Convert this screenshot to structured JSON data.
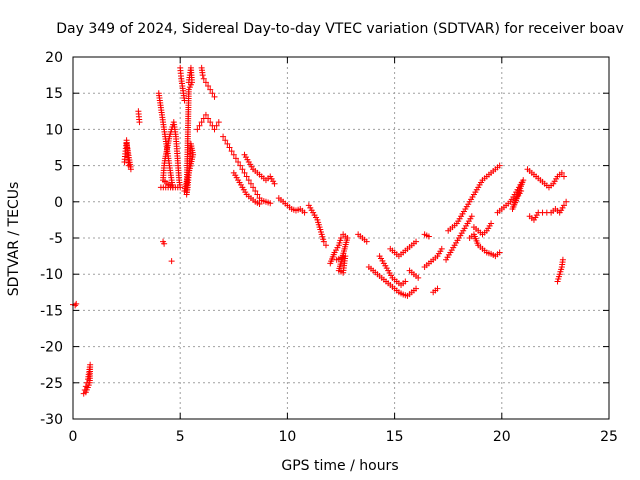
{
  "chart_data": {
    "type": "scatter",
    "title": "Day 349 of 2024, Sidereal Day-to-day VTEC variation (SDTVAR) for receiver boav",
    "xlabel": "GPS time / hours",
    "ylabel": "SDTVAR / TECUs",
    "xlim": [
      0,
      25
    ],
    "ylim": [
      -30,
      20
    ],
    "xticks": [
      0,
      5,
      10,
      15,
      20,
      25
    ],
    "yticks": [
      -30,
      -25,
      -20,
      -15,
      -10,
      -5,
      0,
      5,
      10,
      15,
      20
    ],
    "grid": true,
    "marker": "+",
    "color": "#ff0000",
    "series": [
      {
        "name": "boav",
        "segments": [
          [
            [
              0.0,
              -14.2
            ],
            [
              0.1,
              -14.3
            ],
            [
              0.15,
              -14.1
            ]
          ],
          [
            [
              0.5,
              -26.5
            ],
            [
              0.55,
              -26.0
            ],
            [
              0.6,
              -25.5
            ],
            [
              0.65,
              -25.0
            ],
            [
              0.7,
              -24.5
            ],
            [
              0.75,
              -23.5
            ],
            [
              0.8,
              -22.5
            ],
            [
              0.78,
              -25.0
            ],
            [
              0.6,
              -26.3
            ]
          ],
          [
            [
              2.4,
              5.5
            ],
            [
              2.45,
              7.0
            ],
            [
              2.5,
              8.5
            ],
            [
              2.55,
              6.5
            ],
            [
              2.6,
              5.0
            ],
            [
              2.7,
              4.5
            ],
            [
              2.5,
              8.0
            ]
          ],
          [
            [
              3.05,
              12.5
            ],
            [
              3.1,
              11.0
            ]
          ],
          [
            [
              4.0,
              15.0
            ],
            [
              4.05,
              14.0
            ],
            [
              4.1,
              13.0
            ],
            [
              4.15,
              12.0
            ],
            [
              4.2,
              11.0
            ],
            [
              4.25,
              10.0
            ],
            [
              4.3,
              9.0
            ],
            [
              4.35,
              8.0
            ],
            [
              4.4,
              7.0
            ],
            [
              4.45,
              6.0
            ],
            [
              4.5,
              5.0
            ],
            [
              4.55,
              4.0
            ],
            [
              4.6,
              3.0
            ],
            [
              4.65,
              2.0
            ],
            [
              4.2,
              3.0
            ],
            [
              4.25,
              5.0
            ],
            [
              4.3,
              6.0
            ],
            [
              4.5,
              9.0
            ],
            [
              4.6,
              10.0
            ],
            [
              4.7,
              11.0
            ],
            [
              4.8,
              9.0
            ],
            [
              4.85,
              7.0
            ],
            [
              4.9,
              5.0
            ],
            [
              4.95,
              3.0
            ],
            [
              5.0,
              2.0
            ],
            [
              4.1,
              2.0
            ]
          ],
          [
            [
              4.2,
              -5.5
            ],
            [
              4.25,
              -5.8
            ]
          ],
          [
            [
              4.6,
              -8.2
            ]
          ],
          [
            [
              5.0,
              18.5
            ],
            [
              5.05,
              17.0
            ],
            [
              5.1,
              16.0
            ],
            [
              5.15,
              15.0
            ],
            [
              5.2,
              14.0
            ]
          ],
          [
            [
              5.4,
              16.5
            ],
            [
              5.45,
              17.5
            ],
            [
              5.5,
              18.5
            ],
            [
              5.55,
              16.5
            ],
            [
              5.4,
              15.5
            ],
            [
              5.3,
              1.0
            ],
            [
              5.35,
              2.0
            ],
            [
              5.4,
              4.0
            ],
            [
              5.45,
              6.0
            ],
            [
              5.5,
              8.0
            ],
            [
              5.6,
              6.5
            ],
            [
              5.2,
              1.5
            ]
          ],
          [
            [
              6.0,
              18.5
            ],
            [
              6.05,
              17.5
            ],
            [
              6.1,
              17.0
            ],
            [
              6.2,
              16.5
            ],
            [
              6.3,
              16.0
            ],
            [
              6.4,
              15.5
            ],
            [
              6.5,
              15.0
            ],
            [
              6.6,
              14.5
            ]
          ],
          [
            [
              5.8,
              10.0
            ],
            [
              5.9,
              10.5
            ],
            [
              6.0,
              11.0
            ],
            [
              6.1,
              11.5
            ],
            [
              6.2,
              12.0
            ],
            [
              6.3,
              11.5
            ],
            [
              6.4,
              11.0
            ],
            [
              6.5,
              10.5
            ],
            [
              6.6,
              10.0
            ],
            [
              6.7,
              10.5
            ],
            [
              6.8,
              11.0
            ]
          ],
          [
            [
              7.0,
              9.0
            ],
            [
              7.1,
              8.5
            ],
            [
              7.2,
              8.0
            ],
            [
              7.3,
              7.5
            ],
            [
              7.4,
              7.0
            ],
            [
              7.5,
              6.5
            ],
            [
              7.6,
              6.0
            ],
            [
              7.7,
              5.5
            ],
            [
              7.8,
              5.0
            ],
            [
              7.9,
              4.5
            ],
            [
              8.0,
              4.0
            ],
            [
              8.1,
              3.5
            ],
            [
              8.2,
              3.0
            ],
            [
              8.3,
              2.5
            ],
            [
              8.4,
              2.0
            ],
            [
              8.5,
              1.5
            ],
            [
              8.6,
              1.0
            ],
            [
              8.7,
              0.5
            ],
            [
              8.8,
              0.2
            ],
            [
              9.0,
              0.0
            ],
            [
              9.2,
              -0.2
            ]
          ],
          [
            [
              7.5,
              4.0
            ],
            [
              7.7,
              3.0
            ],
            [
              7.9,
              2.0
            ],
            [
              8.1,
              1.0
            ],
            [
              8.3,
              0.5
            ],
            [
              8.5,
              0.0
            ],
            [
              8.7,
              -0.3
            ]
          ],
          [
            [
              8.0,
              6.5
            ],
            [
              8.2,
              5.5
            ],
            [
              8.4,
              4.5
            ],
            [
              8.6,
              4.0
            ],
            [
              8.8,
              3.5
            ],
            [
              9.0,
              3.0
            ],
            [
              9.2,
              3.5
            ],
            [
              9.4,
              2.5
            ]
          ],
          [
            [
              9.6,
              0.5
            ],
            [
              9.8,
              0.0
            ],
            [
              10.0,
              -0.5
            ],
            [
              10.2,
              -1.0
            ],
            [
              10.4,
              -1.2
            ],
            [
              10.6,
              -1.0
            ],
            [
              10.8,
              -1.5
            ]
          ],
          [
            [
              11.0,
              -0.5
            ],
            [
              11.2,
              -1.5
            ],
            [
              11.4,
              -2.5
            ],
            [
              11.5,
              -3.5
            ],
            [
              11.6,
              -4.5
            ],
            [
              11.7,
              -5.5
            ],
            [
              11.8,
              -6.0
            ]
          ],
          [
            [
              12.0,
              -8.5
            ],
            [
              12.2,
              -7.0
            ],
            [
              12.4,
              -6.0
            ],
            [
              12.5,
              -5.0
            ],
            [
              12.6,
              -4.5
            ],
            [
              12.8,
              -5.0
            ],
            [
              12.4,
              -9.5
            ],
            [
              12.6,
              -9.8
            ],
            [
              12.7,
              -7.5
            ],
            [
              12.3,
              -8.0
            ]
          ],
          [
            [
              13.3,
              -4.5
            ],
            [
              13.5,
              -5.0
            ],
            [
              13.7,
              -5.5
            ]
          ],
          [
            [
              13.8,
              -9.0
            ],
            [
              14.0,
              -9.5
            ],
            [
              14.2,
              -10.0
            ],
            [
              14.4,
              -10.5
            ],
            [
              14.6,
              -11.0
            ],
            [
              14.8,
              -11.5
            ],
            [
              15.0,
              -12.0
            ],
            [
              15.2,
              -12.5
            ],
            [
              15.4,
              -12.8
            ],
            [
              15.6,
              -13.0
            ],
            [
              15.8,
              -12.5
            ],
            [
              16.0,
              -12.0
            ]
          ],
          [
            [
              14.3,
              -7.5
            ],
            [
              14.5,
              -8.5
            ],
            [
              14.7,
              -9.5
            ],
            [
              14.9,
              -10.5
            ],
            [
              15.1,
              -11.0
            ],
            [
              15.3,
              -11.5
            ],
            [
              15.5,
              -11.0
            ]
          ],
          [
            [
              14.8,
              -6.5
            ],
            [
              15.0,
              -7.0
            ],
            [
              15.2,
              -7.5
            ],
            [
              15.4,
              -7.0
            ],
            [
              15.6,
              -6.5
            ],
            [
              15.8,
              -6.0
            ],
            [
              16.0,
              -5.5
            ]
          ],
          [
            [
              15.7,
              -9.5
            ],
            [
              15.9,
              -10.0
            ],
            [
              16.1,
              -10.5
            ]
          ],
          [
            [
              16.4,
              -4.5
            ],
            [
              16.6,
              -4.8
            ]
          ],
          [
            [
              16.4,
              -9.0
            ],
            [
              16.6,
              -8.5
            ],
            [
              16.8,
              -8.0
            ],
            [
              17.0,
              -7.5
            ],
            [
              17.2,
              -6.5
            ]
          ],
          [
            [
              16.8,
              -12.5
            ],
            [
              17.0,
              -12.0
            ]
          ],
          [
            [
              17.5,
              -4.0
            ],
            [
              17.7,
              -3.5
            ],
            [
              17.9,
              -3.0
            ],
            [
              18.1,
              -2.0
            ],
            [
              18.3,
              -1.0
            ],
            [
              18.5,
              0.0
            ],
            [
              18.7,
              1.0
            ],
            [
              18.9,
              2.0
            ],
            [
              19.1,
              3.0
            ],
            [
              19.3,
              3.5
            ],
            [
              19.5,
              4.0
            ],
            [
              19.7,
              4.5
            ],
            [
              19.9,
              5.0
            ]
          ],
          [
            [
              17.4,
              -8.0
            ],
            [
              17.6,
              -7.0
            ],
            [
              17.8,
              -6.0
            ],
            [
              18.0,
              -5.0
            ],
            [
              18.2,
              -4.0
            ],
            [
              18.4,
              -3.0
            ],
            [
              18.6,
              -2.0
            ]
          ],
          [
            [
              18.7,
              -3.5
            ],
            [
              18.9,
              -4.0
            ],
            [
              19.1,
              -4.5
            ],
            [
              19.3,
              -4.0
            ],
            [
              19.5,
              -3.0
            ]
          ],
          [
            [
              18.5,
              -5.0
            ],
            [
              18.7,
              -4.5
            ],
            [
              18.9,
              -6.0
            ],
            [
              19.1,
              -6.5
            ],
            [
              19.3,
              -7.0
            ],
            [
              19.5,
              -7.2
            ],
            [
              19.7,
              -7.5
            ],
            [
              19.9,
              -7.0
            ]
          ],
          [
            [
              19.8,
              -1.5
            ],
            [
              20.0,
              -1.0
            ],
            [
              20.2,
              -0.5
            ],
            [
              20.4,
              0.0
            ],
            [
              20.6,
              1.0
            ],
            [
              20.8,
              2.0
            ],
            [
              21.0,
              3.0
            ],
            [
              20.5,
              -1.0
            ],
            [
              20.7,
              0.5
            ],
            [
              20.9,
              1.5
            ]
          ],
          [
            [
              21.2,
              4.5
            ],
            [
              21.4,
              4.0
            ],
            [
              21.6,
              3.5
            ],
            [
              21.8,
              3.0
            ],
            [
              22.0,
              2.5
            ],
            [
              22.2,
              2.0
            ],
            [
              22.4,
              2.5
            ],
            [
              22.6,
              3.5
            ],
            [
              22.8,
              4.0
            ],
            [
              22.9,
              3.5
            ]
          ],
          [
            [
              21.3,
              -2.0
            ],
            [
              21.5,
              -2.5
            ],
            [
              21.7,
              -1.5
            ],
            [
              21.9,
              -1.5
            ],
            [
              22.1,
              -1.5
            ],
            [
              22.3,
              -1.5
            ],
            [
              22.5,
              -1.0
            ],
            [
              22.7,
              -1.5
            ],
            [
              22.9,
              -0.5
            ],
            [
              23.0,
              0.0
            ]
          ],
          [
            [
              22.6,
              -11.0
            ],
            [
              22.7,
              -10.0
            ],
            [
              22.8,
              -9.0
            ],
            [
              22.85,
              -8.0
            ]
          ]
        ]
      }
    ]
  }
}
